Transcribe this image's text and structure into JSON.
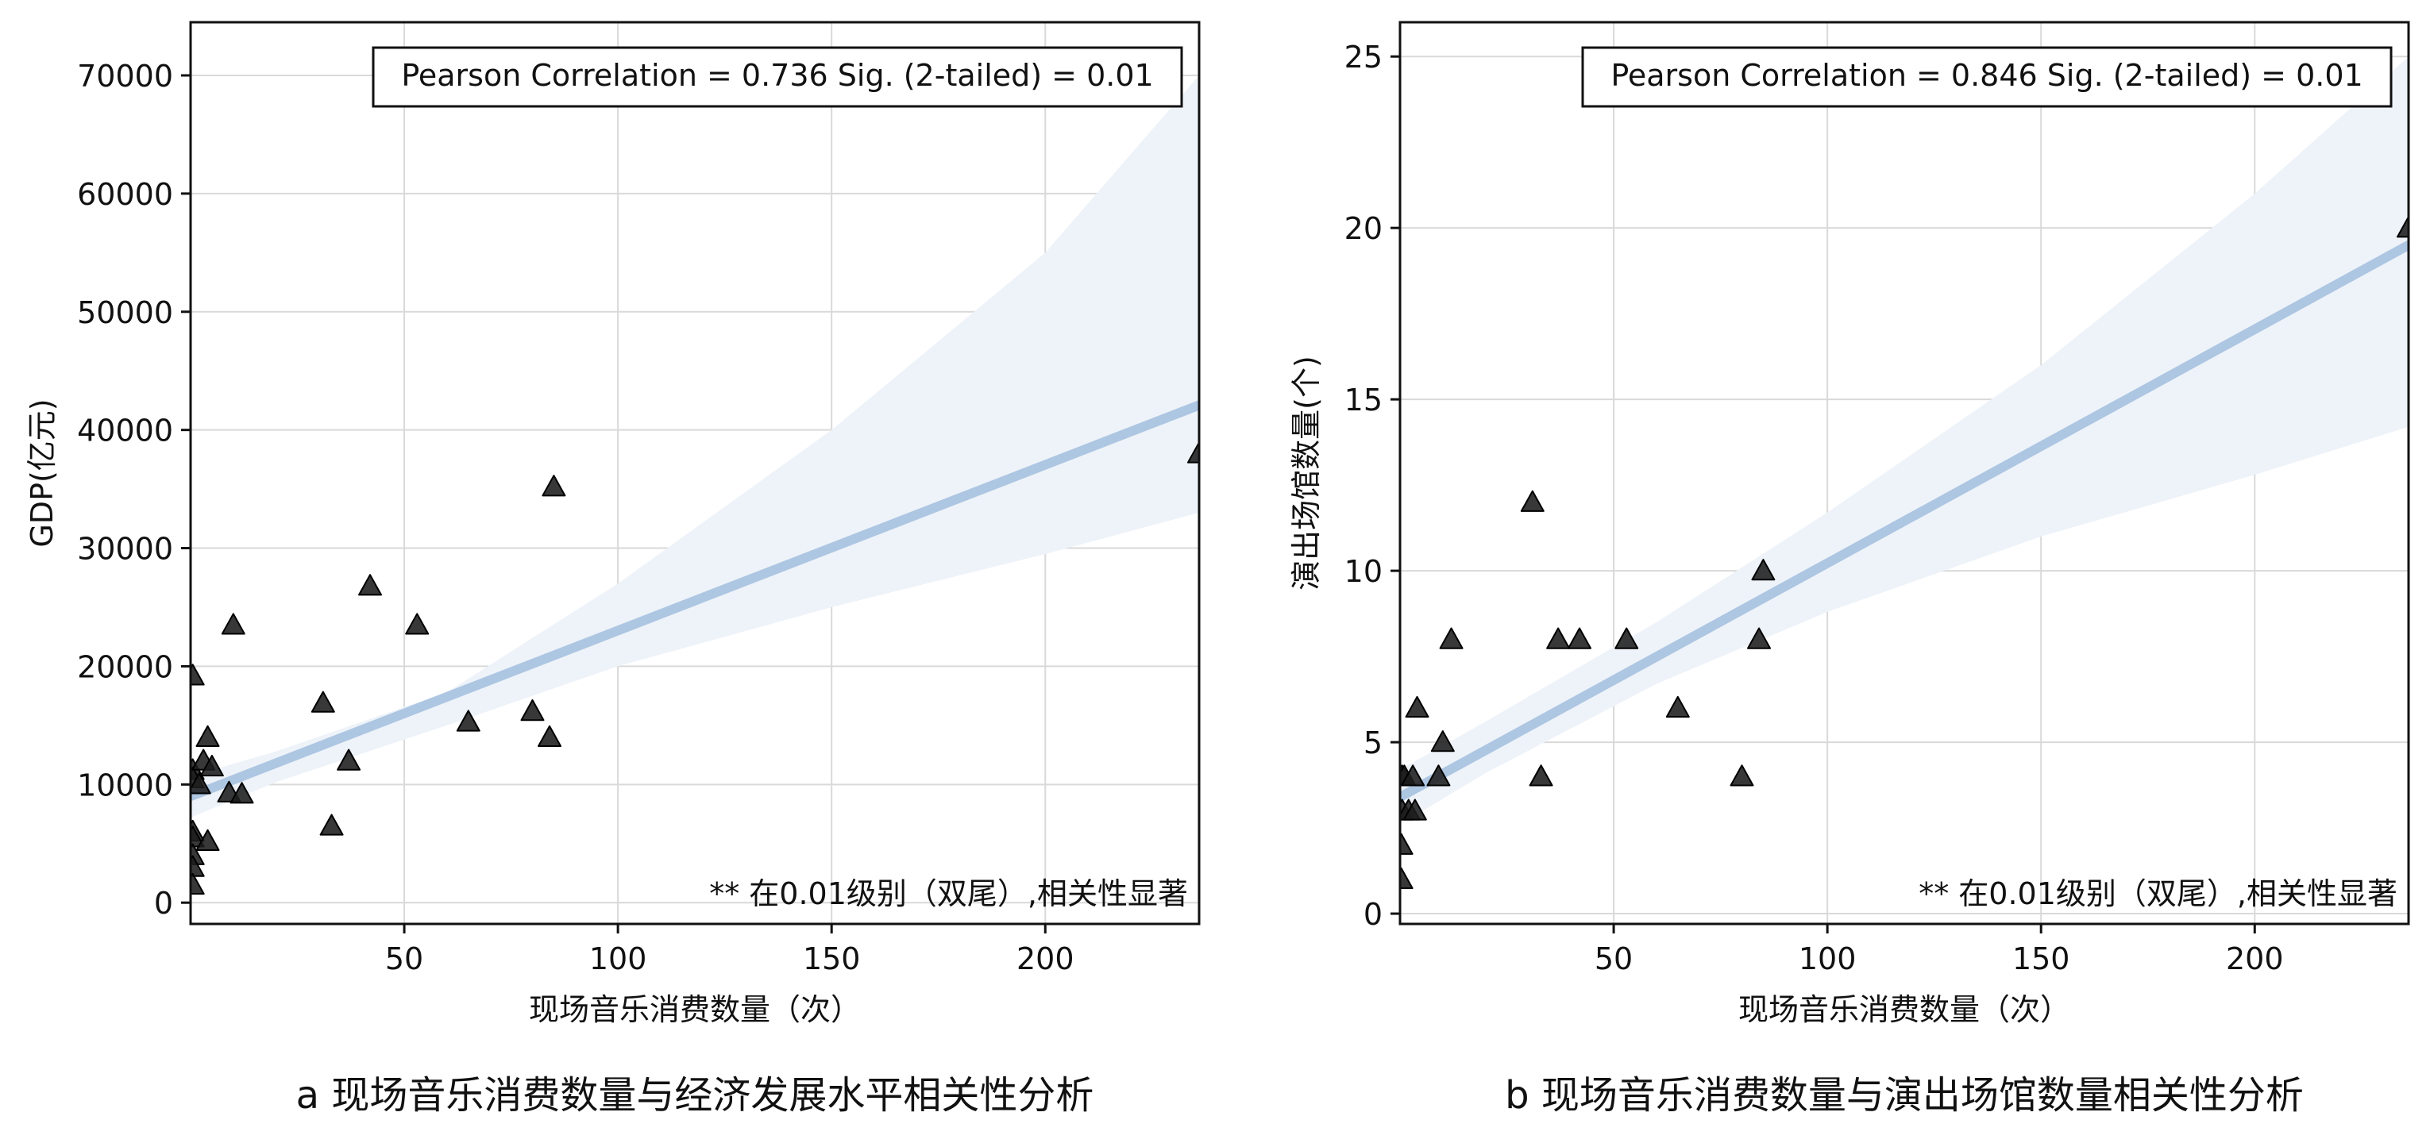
{
  "chart_data": [
    {
      "type": "scatter",
      "caption": "a 现场音乐消费数量与经济发展水平相关性分析",
      "xlabel": "现场音乐消费数量（次）",
      "ylabel": "GDP(亿元)",
      "xlim": [
        0,
        236
      ],
      "ylim": [
        -1800,
        74500
      ],
      "x_ticks": [
        50,
        100,
        150,
        200
      ],
      "y_ticks": [
        0,
        10000,
        20000,
        30000,
        40000,
        50000,
        60000,
        70000
      ],
      "grid": true,
      "stats_text": "Pearson Correlation = 0.736  Sig. (2-tailed) = 0.01",
      "note_text": "** 在0.01级别（双尾）,相关性显著",
      "marker": "triangle",
      "marker_color": "#1c1c1c",
      "fit_color": "#adc6e2",
      "band_color": "#eef3f9",
      "fit_line": [
        [
          0,
          9000
        ],
        [
          236,
          42100
        ]
      ],
      "band_upper": [
        [
          0,
          10700
        ],
        [
          20,
          12800
        ],
        [
          60,
          17800
        ],
        [
          100,
          27000
        ],
        [
          150,
          40000
        ],
        [
          200,
          55000
        ],
        [
          236,
          70000
        ]
      ],
      "band_lower": [
        [
          0,
          7200
        ],
        [
          20,
          10200
        ],
        [
          60,
          15000
        ],
        [
          100,
          20000
        ],
        [
          150,
          25000
        ],
        [
          200,
          29500
        ],
        [
          236,
          33000
        ]
      ],
      "points": [
        [
          0.5,
          19200
        ],
        [
          0.5,
          11200
        ],
        [
          0.5,
          10500
        ],
        [
          0.5,
          6000
        ],
        [
          0.5,
          5500
        ],
        [
          0.5,
          4000
        ],
        [
          0.5,
          3000
        ],
        [
          0.5,
          1500
        ],
        [
          2,
          10000
        ],
        [
          3,
          12000
        ],
        [
          4,
          14000
        ],
        [
          4,
          5200
        ],
        [
          5,
          11500
        ],
        [
          9,
          9300
        ],
        [
          10,
          23500
        ],
        [
          12,
          9200
        ],
        [
          31,
          16900
        ],
        [
          33,
          6500
        ],
        [
          37,
          12000
        ],
        [
          42,
          26800
        ],
        [
          53,
          23500
        ],
        [
          65,
          15300
        ],
        [
          80,
          16200
        ],
        [
          84,
          14000
        ],
        [
          85,
          35200
        ],
        [
          236,
          38000
        ]
      ]
    },
    {
      "type": "scatter",
      "caption": "b 现场音乐消费数量与演出场馆数量相关性分析",
      "xlabel": "现场音乐消费数量（次）",
      "ylabel": "演出场馆数量(个)",
      "xlim": [
        0,
        236
      ],
      "ylim": [
        -0.3,
        26
      ],
      "x_ticks": [
        50,
        100,
        150,
        200
      ],
      "y_ticks": [
        0,
        5,
        10,
        15,
        20,
        25
      ],
      "grid": true,
      "stats_text": "Pearson Correlation = 0.846  Sig. (2-tailed) = 0.01",
      "note_text": "** 在0.01级别（双尾）,相关性显著",
      "marker": "triangle",
      "marker_color": "#1c1c1c",
      "fit_color": "#adc6e2",
      "band_color": "#eef3f9",
      "fit_line": [
        [
          0,
          3.4
        ],
        [
          236,
          19.5
        ]
      ],
      "band_upper": [
        [
          0,
          4.2
        ],
        [
          20,
          5.6
        ],
        [
          60,
          8.5
        ],
        [
          100,
          11.7
        ],
        [
          150,
          16.0
        ],
        [
          200,
          21.0
        ],
        [
          236,
          25.0
        ]
      ],
      "band_lower": [
        [
          0,
          2.6
        ],
        [
          20,
          4.1
        ],
        [
          60,
          6.7
        ],
        [
          100,
          8.8
        ],
        [
          150,
          11.0
        ],
        [
          200,
          12.8
        ],
        [
          236,
          14.2
        ]
      ],
      "points": [
        [
          0.3,
          1
        ],
        [
          0.3,
          2
        ],
        [
          0.5,
          3
        ],
        [
          0.5,
          4
        ],
        [
          1,
          4
        ],
        [
          2,
          3
        ],
        [
          3,
          4
        ],
        [
          3.5,
          3
        ],
        [
          4,
          6
        ],
        [
          9,
          4
        ],
        [
          10,
          5
        ],
        [
          12,
          8
        ],
        [
          31,
          12
        ],
        [
          33,
          4
        ],
        [
          37,
          8
        ],
        [
          42,
          8
        ],
        [
          53,
          8
        ],
        [
          65,
          6
        ],
        [
          80,
          4
        ],
        [
          84,
          8
        ],
        [
          85,
          10
        ],
        [
          236,
          20
        ]
      ]
    }
  ]
}
